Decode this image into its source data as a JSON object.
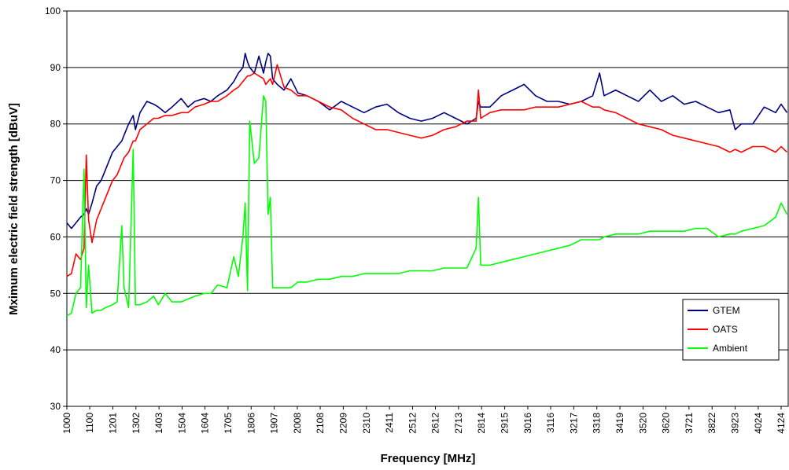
{
  "chart_data": {
    "type": "line",
    "x_label": "Frequency [MHz]",
    "y_label": "Mximum electric field strength [dBuV]",
    "x": [
      1000,
      1020,
      1040,
      1060,
      1075,
      1085,
      1095,
      1110,
      1130,
      1150,
      1170,
      1200,
      1220,
      1240,
      1250,
      1270,
      1290,
      1300,
      1320,
      1350,
      1380,
      1400,
      1430,
      1460,
      1500,
      1530,
      1560,
      1600,
      1630,
      1660,
      1700,
      1730,
      1750,
      1770,
      1780,
      1790,
      1800,
      1820,
      1840,
      1860,
      1870,
      1880,
      1890,
      1900,
      1920,
      1950,
      1980,
      2010,
      2050,
      2100,
      2150,
      2200,
      2250,
      2300,
      2350,
      2400,
      2450,
      2500,
      2550,
      2600,
      2650,
      2700,
      2750,
      2790,
      2800,
      2810,
      2850,
      2900,
      2950,
      3000,
      3050,
      3100,
      3150,
      3200,
      3250,
      3300,
      3330,
      3350,
      3400,
      3450,
      3500,
      3550,
      3600,
      3650,
      3700,
      3750,
      3800,
      3850,
      3900,
      3923,
      3950,
      4000,
      4050,
      4100,
      4124,
      4150
    ],
    "series": [
      {
        "name": "GTEM",
        "color": "#000080",
        "values": [
          62.5,
          61.5,
          62.5,
          63.5,
          64,
          65,
          64,
          66,
          69,
          70,
          72,
          75,
          76,
          77,
          78,
          80,
          81.5,
          79,
          82,
          84,
          83.5,
          83,
          82,
          83,
          84.5,
          83,
          84,
          84.5,
          84,
          85,
          86,
          87.5,
          89,
          90,
          92.5,
          91,
          90,
          89,
          92,
          89,
          91,
          92.5,
          92,
          88,
          87,
          86,
          88,
          85.5,
          85,
          84,
          82.5,
          84,
          83,
          82,
          83,
          83.5,
          82,
          81,
          80.5,
          81,
          82,
          81,
          80,
          81,
          84,
          83,
          83,
          85,
          86,
          87,
          85,
          84,
          84,
          83.5,
          84,
          85,
          89,
          85,
          86,
          85,
          84,
          86,
          84,
          85,
          83.5,
          84,
          83,
          82,
          82.5,
          79,
          80,
          80,
          83,
          82,
          83.5,
          82
        ]
      },
      {
        "name": "OATS",
        "color": "#ff0000",
        "values": [
          53,
          53.5,
          57,
          56,
          58,
          74.5,
          63,
          59,
          63,
          65,
          67,
          70,
          71,
          73,
          74,
          75,
          77,
          77,
          79,
          80,
          81,
          81,
          81.5,
          81.5,
          82,
          82,
          83,
          83.5,
          84,
          84,
          85,
          86,
          86.5,
          87.5,
          88,
          88.5,
          88.5,
          89,
          88.5,
          88,
          87,
          87.5,
          88,
          87,
          90.5,
          86.5,
          86,
          85,
          85,
          84,
          83,
          82.5,
          81,
          80,
          79,
          79,
          78.5,
          78,
          77.5,
          78,
          79,
          79.5,
          80.5,
          80.5,
          86,
          81,
          82,
          82.5,
          82.5,
          82.5,
          83,
          83,
          83,
          83.5,
          84,
          83,
          83,
          82.5,
          82,
          81,
          80,
          79.5,
          79,
          78,
          77.5,
          77,
          76.5,
          76,
          75,
          75.5,
          75,
          76,
          76,
          75,
          76,
          75
        ]
      },
      {
        "name": "Ambient",
        "color": "#00ff00",
        "values": [
          46,
          46.5,
          50,
          51,
          72,
          47.5,
          55,
          46.5,
          47,
          47,
          47.5,
          48,
          48.5,
          62,
          51,
          47.5,
          75.5,
          48,
          48,
          48.5,
          49.5,
          48,
          50,
          48.5,
          48.5,
          49,
          49.5,
          50,
          50,
          51.5,
          51,
          56.5,
          53,
          60,
          66,
          50.5,
          80.5,
          73,
          74,
          85,
          84,
          64,
          67,
          51,
          51,
          51,
          51,
          52,
          52,
          52.5,
          52.5,
          53,
          53,
          53.5,
          53.5,
          53.5,
          53.5,
          54,
          54,
          54,
          54.5,
          54.5,
          54.5,
          58,
          67,
          55,
          55,
          55.5,
          56,
          56.5,
          57,
          57.5,
          58,
          58.5,
          59.5,
          59.5,
          59.5,
          60,
          60.5,
          60.5,
          60.5,
          61,
          61,
          61,
          61,
          61.5,
          61.5,
          60,
          60.5,
          60.5,
          61,
          61.5,
          62,
          63.5,
          66,
          64
        ]
      }
    ],
    "xlim": [
      1000,
      4155
    ],
    "xticks": [
      1000,
      1100,
      1201,
      1302,
      1403,
      1504,
      1604,
      1705,
      1806,
      1907,
      2008,
      2108,
      2209,
      2310,
      2411,
      2512,
      2612,
      2713,
      2814,
      2915,
      3016,
      3116,
      3217,
      3318,
      3419,
      3520,
      3620,
      3721,
      3822,
      3923,
      4024,
      4124
    ],
    "ylim": [
      30,
      100
    ],
    "yticks": [
      30,
      40,
      50,
      60,
      70,
      80,
      90,
      100
    ],
    "grid": true,
    "legend": "lower-right"
  }
}
